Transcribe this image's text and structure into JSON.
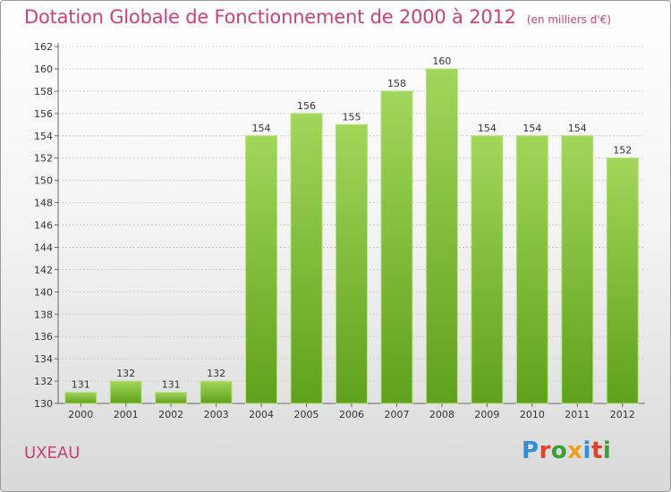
{
  "title": "Dotation Globale de Fonctionnement de 2000 à 2012",
  "unit": "(en milliers d'€)",
  "commune": "UXEAU",
  "logo": {
    "letters": [
      "P",
      "r",
      "o",
      "x",
      "i",
      "t",
      "i"
    ],
    "colors": [
      "#2f8fd8",
      "#e0412a",
      "#3aa03a",
      "#f0a020",
      "#2f8fd8",
      "#e0412a",
      "#3aa03a"
    ]
  },
  "colors": {
    "bar_top": "#a2d65a",
    "bar_bottom": "#5fa11c",
    "accent": "#c8417b"
  },
  "chart_data": {
    "type": "bar",
    "title": "Dotation Globale de Fonctionnement de 2000 à 2012",
    "categories": [
      "2000",
      "2001",
      "2002",
      "2003",
      "2004",
      "2005",
      "2006",
      "2007",
      "2008",
      "2009",
      "2010",
      "2011",
      "2012"
    ],
    "values": [
      131,
      132,
      131,
      132,
      154,
      156,
      155,
      158,
      160,
      154,
      154,
      154,
      152
    ],
    "ylim": [
      130,
      162
    ],
    "yticks": [
      130,
      132,
      134,
      136,
      138,
      140,
      142,
      144,
      146,
      148,
      150,
      152,
      154,
      156,
      158,
      160,
      162
    ],
    "grid": true
  }
}
